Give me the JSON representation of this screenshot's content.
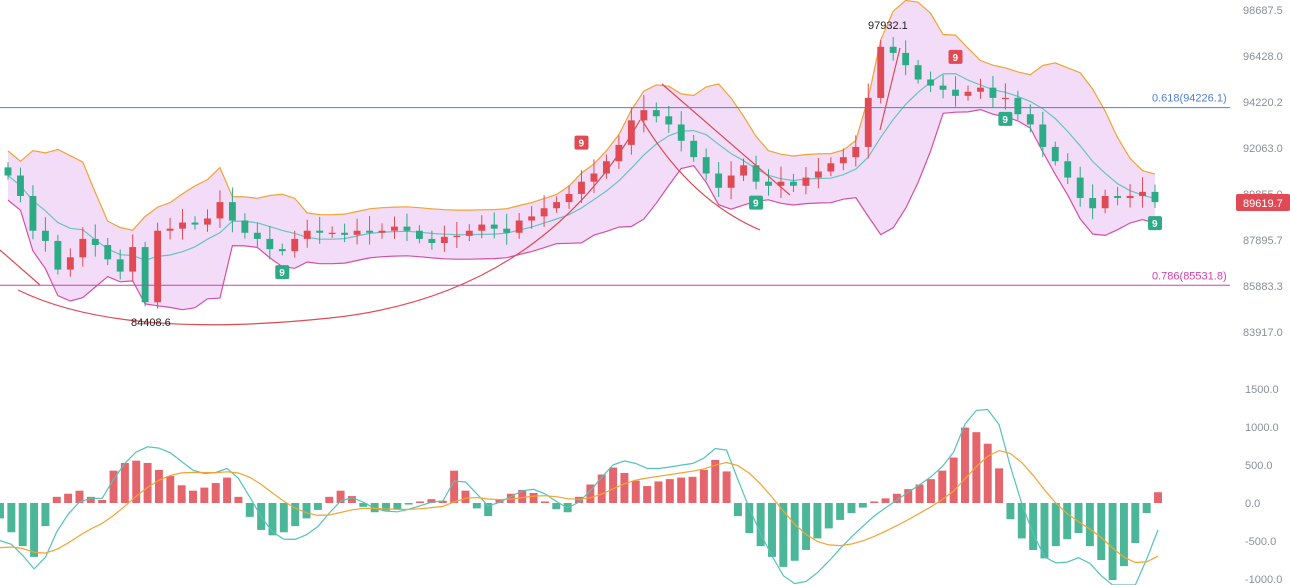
{
  "chart_data": [
    {
      "type": "candlestick",
      "price_axis_ticks": [
        "98687.5",
        "96428.0",
        "94220.2",
        "92063.0",
        "89855.0",
        "87895.7",
        "85883.3",
        "83917.0"
      ],
      "ylim": [
        83000,
        99000
      ],
      "current_price": "89619.7",
      "annotations": {
        "high_label": "97932.1",
        "low_label": "84408.6"
      },
      "fib_levels": [
        {
          "label": "0.618(94226.1)",
          "value": 94226.1,
          "color": "#4f7fd6"
        },
        {
          "label": "0.786(85531.8)",
          "value": 85531.8,
          "color": "#d43fae"
        }
      ],
      "td_markers": [
        {
          "text": "9",
          "kind": "sell",
          "at": 46
        },
        {
          "text": "9",
          "kind": "buy",
          "at": 22
        },
        {
          "text": "9",
          "kind": "buy",
          "at": 60
        },
        {
          "text": "9",
          "kind": "sell",
          "at": 76
        },
        {
          "text": "9",
          "kind": "buy",
          "at": 80
        },
        {
          "text": "9",
          "kind": "buy",
          "at": 92
        }
      ],
      "colors": {
        "up": "#e04a54",
        "down": "#2daa86",
        "band_fill": "#f3dcf7",
        "band_upper": "#f2a433",
        "band_lower": "#d64fa7",
        "mid": "#68c3c3"
      },
      "closes": [
        90900,
        89900,
        88200,
        87700,
        86300,
        86900,
        87800,
        87500,
        86800,
        86200,
        87400,
        84700,
        88200,
        88300,
        88600,
        88500,
        88800,
        89600,
        88700,
        88100,
        87800,
        87300,
        87200,
        87800,
        88200,
        88100,
        88100,
        88000,
        88200,
        88100,
        88200,
        88400,
        88200,
        87800,
        87600,
        87900,
        87950,
        88200,
        88500,
        88300,
        88100,
        88700,
        88900,
        89300,
        89600,
        90000,
        90600,
        91000,
        91600,
        92400,
        93600,
        94100,
        93800,
        93400,
        92600,
        91800,
        91000,
        90300,
        90900,
        91400,
        90600,
        90400,
        90600,
        90400,
        90800,
        91100,
        91500,
        91800,
        92300,
        94700,
        97200,
        96900,
        96300,
        95600,
        95300,
        95100,
        94800,
        95000,
        95200,
        94700,
        94700,
        93900,
        93400,
        92300,
        91600,
        90800,
        89800,
        89300,
        89900,
        89800,
        89900,
        90100,
        89600
      ]
    },
    {
      "type": "macd",
      "axis_ticks": [
        "1500.0",
        "1000.0",
        "500.0",
        "0.0",
        "-500.0",
        "-1000.0"
      ],
      "ylim": [
        -1000,
        1500
      ],
      "colors": {
        "pos": "#e04a54",
        "neg": "#2daa86",
        "dif": "#55c3ba",
        "dea": "#f2a433"
      },
      "histogram": [
        -200,
        -380,
        -560,
        -700,
        -300,
        80,
        120,
        160,
        80,
        40,
        420,
        520,
        550,
        520,
        430,
        350,
        230,
        160,
        200,
        260,
        330,
        80,
        -180,
        -350,
        -420,
        -380,
        -300,
        -200,
        -90,
        80,
        160,
        90,
        -50,
        -120,
        -100,
        -80,
        -20,
        20,
        50,
        30,
        420,
        160,
        -70,
        -170,
        50,
        120,
        170,
        130,
        20,
        -80,
        -120,
        80,
        240,
        370,
        460,
        390,
        290,
        220,
        280,
        310,
        330,
        340,
        430,
        560,
        410,
        -170,
        -390,
        -560,
        -700,
        -830,
        -750,
        -610,
        -460,
        -330,
        -220,
        -130,
        -60,
        20,
        60,
        120,
        180,
        240,
        310,
        420,
        590,
        980,
        920,
        770,
        450,
        -210,
        -460,
        -610,
        -720,
        -560,
        -470,
        -390,
        -560,
        -740,
        -1000,
        -820,
        -520,
        -130,
        140
      ]
    }
  ]
}
